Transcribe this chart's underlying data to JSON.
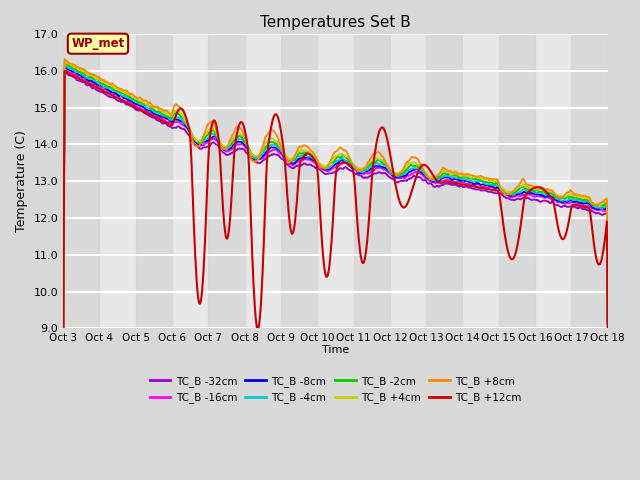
{
  "title": "Temperatures Set B",
  "xlabel": "Time",
  "ylabel": "Temperature (C)",
  "ylim": [
    9.0,
    17.0
  ],
  "yticks": [
    9.0,
    10.0,
    11.0,
    12.0,
    13.0,
    14.0,
    15.0,
    16.0,
    17.0
  ],
  "x_labels": [
    "Oct 3",
    "Oct 4",
    "Oct 5",
    "Oct 6",
    "Oct 7",
    "Oct 8",
    "Oct 9",
    "Oct 10",
    "Oct 11",
    "Oct 12",
    "Oct 13",
    "Oct 14",
    "Oct 15",
    "Oct 16",
    "Oct 17",
    "Oct 18"
  ],
  "annotation_text": "WP_met",
  "annotation_color": "#990000",
  "annotation_bg": "#ffffaa",
  "bg_color": "#d8d8d8",
  "plot_bg": "#e8e8e8",
  "series": [
    {
      "label": "TC_B -32cm",
      "color": "#9900cc",
      "lw": 1.3
    },
    {
      "label": "TC_B -16cm",
      "color": "#ff00ff",
      "lw": 1.3
    },
    {
      "label": "TC_B -8cm",
      "color": "#0000ee",
      "lw": 1.3
    },
    {
      "label": "TC_B -4cm",
      "color": "#00cccc",
      "lw": 1.3
    },
    {
      "label": "TC_B -2cm",
      "color": "#00cc00",
      "lw": 1.3
    },
    {
      "label": "TC_B +4cm",
      "color": "#cccc00",
      "lw": 1.3
    },
    {
      "label": "TC_B +8cm",
      "color": "#ff8800",
      "lw": 1.3
    },
    {
      "label": "TC_B +12cm",
      "color": "#cc0000",
      "lw": 1.5
    }
  ]
}
